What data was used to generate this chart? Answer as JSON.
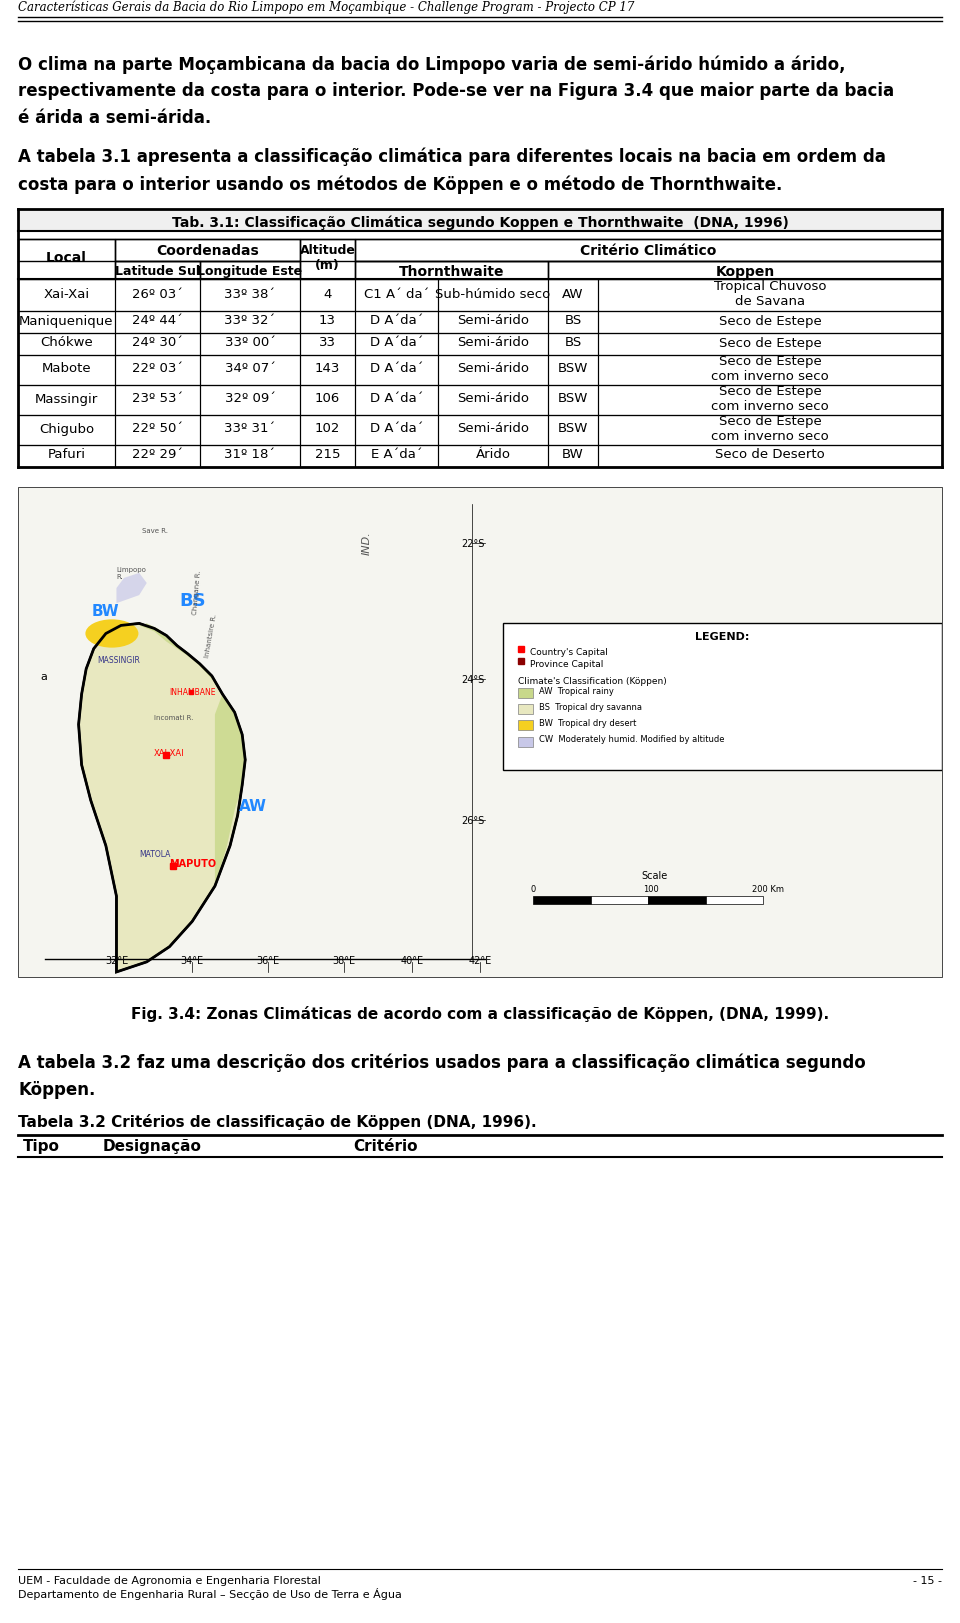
{
  "header_italic": "Características Gerais da Bacia do Rio Limpopo em Moçambique - Challenge Program - Projecto CP 17",
  "para1": "O clima na parte Moçambicana da bacia do Limpopo varia de semi-árido húmido a árido,\nrespectivamente da costa para o interior. Pode-se ver na Figura 3.4 que maior parte da bacia\né árida a semi-árida.",
  "para2": "A tabela 3.1 apresenta a classificação climática para diferentes locais na bacia em ordem da\ncosta para o interior usando os métodos de Köppen e o método de Thornthwaite.",
  "table_title": "Tab. 3.1: Classificação Climática segundo Koppen e Thornthwaite  (DNA, 1996)",
  "col_headers": [
    "Local",
    "Coordenadas",
    "",
    "Altitude\n(m)",
    "Critério Climático",
    "",
    ""
  ],
  "sub_headers": [
    "",
    "Latitude Sul",
    "Longitude Este",
    "",
    "Thornthwaite",
    "Koppen",
    ""
  ],
  "rows": [
    [
      "Xai-Xai",
      "26º 03´",
      "33º 38´",
      "4",
      "C1 A´ da´",
      "Sub-húmido seco",
      "AW",
      "Tropical Chuvoso\nde Savana"
    ],
    [
      "Maniquenique",
      "24º 44´",
      "33º 32´",
      "13",
      "D A´da´",
      "Semi-árido",
      "BS",
      "Seco de Estepe"
    ],
    [
      "Chókwe",
      "24º 30´",
      "33º 00´",
      "33",
      "D A´da´",
      "Semi-árido",
      "BS",
      "Seco de Estepe"
    ],
    [
      "Mabote",
      "22º 03´",
      "34º 07´",
      "143",
      "D A´da´",
      "Semi-árido",
      "BSW",
      "Seco de Estepe\ncom inverno seco"
    ],
    [
      "Massingir",
      "23º 53´",
      "32º 09´",
      "106",
      "D A´da´",
      "Semi-árido",
      "BSW",
      "Seco de Estepe\ncom inverno seco"
    ],
    [
      "Chigubo",
      "22º 50´",
      "33º 31´",
      "102",
      "D A´da´",
      "Semi-árido",
      "BSW",
      "Seco de Estepe\ncom inverno seco"
    ],
    [
      "Pafuri",
      "22º 29´",
      "31º 18´",
      "215",
      "E A´da´",
      "Árido",
      "BW",
      "Seco de Deserto"
    ]
  ],
  "fig_caption": "Fig. 3.4: Zonas Climáticas de acordo com a classificação de Köppen, (DNA, 1999).",
  "para3": "A tabela 3.2 faz uma descrição dos critérios usados para a classificação climática segundo\nKöppen.",
  "table2_title": "Tabela 3.2 Critérios de classificação de Köppen (DNA, 1996).",
  "table2_headers": [
    "Tipo",
    "Designação",
    "Critério"
  ],
  "footer_left": "UEM - Faculdade de Agronomia e Engenharia Florestal\nDepartamento de Engenharia Rural – Secção de Uso de Terra e Água",
  "footer_right": "- 15 -",
  "bg_color": "#ffffff",
  "table_border_color": "#000000",
  "header_bg": "#d3d3d3"
}
